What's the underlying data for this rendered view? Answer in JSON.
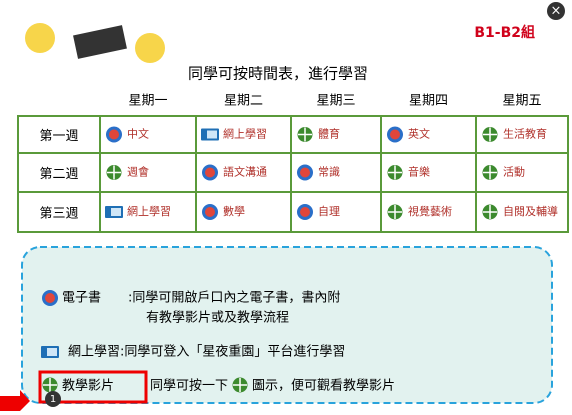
{
  "header": {
    "title": "同學可按時間表，進行學習",
    "group": "B1-B2組"
  },
  "table": {
    "days": [
      "星期一",
      "星期二",
      "星期三",
      "星期四",
      "星期五"
    ],
    "rows": [
      {
        "week": "第一週",
        "cells": [
          {
            "icon": "ebook",
            "text": "中文"
          },
          {
            "icon": "online",
            "text": "網上學習"
          },
          {
            "icon": "video",
            "text": "體育"
          },
          {
            "icon": "ebook",
            "text": "英文"
          },
          {
            "icon": "video",
            "text": "生活教育"
          }
        ]
      },
      {
        "week": "第二週",
        "cells": [
          {
            "icon": "video",
            "text": "週會"
          },
          {
            "icon": "ebook",
            "text": "語文溝通"
          },
          {
            "icon": "ebook",
            "text": "常識"
          },
          {
            "icon": "video",
            "text": "音樂"
          },
          {
            "icon": "video",
            "text": "活動"
          }
        ]
      },
      {
        "week": "第三週",
        "cells": [
          {
            "icon": "online",
            "text": "網上學習"
          },
          {
            "icon": "ebook",
            "text": "數學"
          },
          {
            "icon": "ebook",
            "text": "自理"
          },
          {
            "icon": "video",
            "text": "視覺藝術"
          },
          {
            "icon": "video",
            "text": "自閱及輔導"
          }
        ]
      }
    ]
  },
  "legend": {
    "ebook": {
      "label": "電子書",
      "line1": ":同學可開啟戶口內之電子書，書內附",
      "line2": "有教學影片或及教學流程"
    },
    "online": {
      "text": "網上學習:同學可登入「星夜重園」平台進行學習"
    },
    "video": {
      "label": "教學影片",
      "before": "同學可按一下",
      "after": "圖示，便可觀看教學影片",
      "badge": "1"
    }
  }
}
